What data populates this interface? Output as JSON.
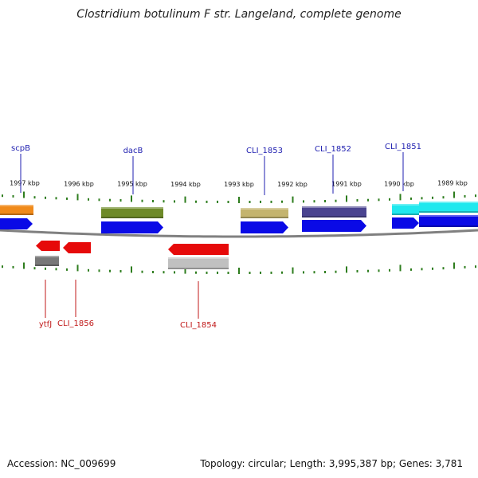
{
  "title": "Clostridium botulinum F str. Langeland, complete genome",
  "footer": {
    "accession": "Accession: NC_009699",
    "summary": "Topology: circular; Length: 3,995,387 bp; Genes: 3,781"
  },
  "kbp_labels": [
    "1997 kbp",
    "1996 kbp",
    "1995 kbp",
    "1994 kbp",
    "1993 kbp",
    "1992 kbp",
    "1991 kbp",
    "1990 kbp",
    "1989 kbp"
  ],
  "gene_labels_top": [
    "scpB",
    "dacB",
    "CLI_1853",
    "CLI_1852",
    "CLI_1851"
  ],
  "gene_labels_bottom": [
    "ytfJ",
    "CLI_1856",
    "CLI_1854"
  ],
  "colors": {
    "backbone": "#808080",
    "tick": "#2e7d1e",
    "forward_cds": "#0a0ae6",
    "reverse_cds": "#e60a0a",
    "orange": "#f08a1a",
    "olive": "#6e8a28",
    "khaki": "#c4b46e",
    "slate": "#4a4490",
    "cyan": "#20e8ee",
    "gray": "#787878",
    "lightgray": "#c0c0c0"
  }
}
